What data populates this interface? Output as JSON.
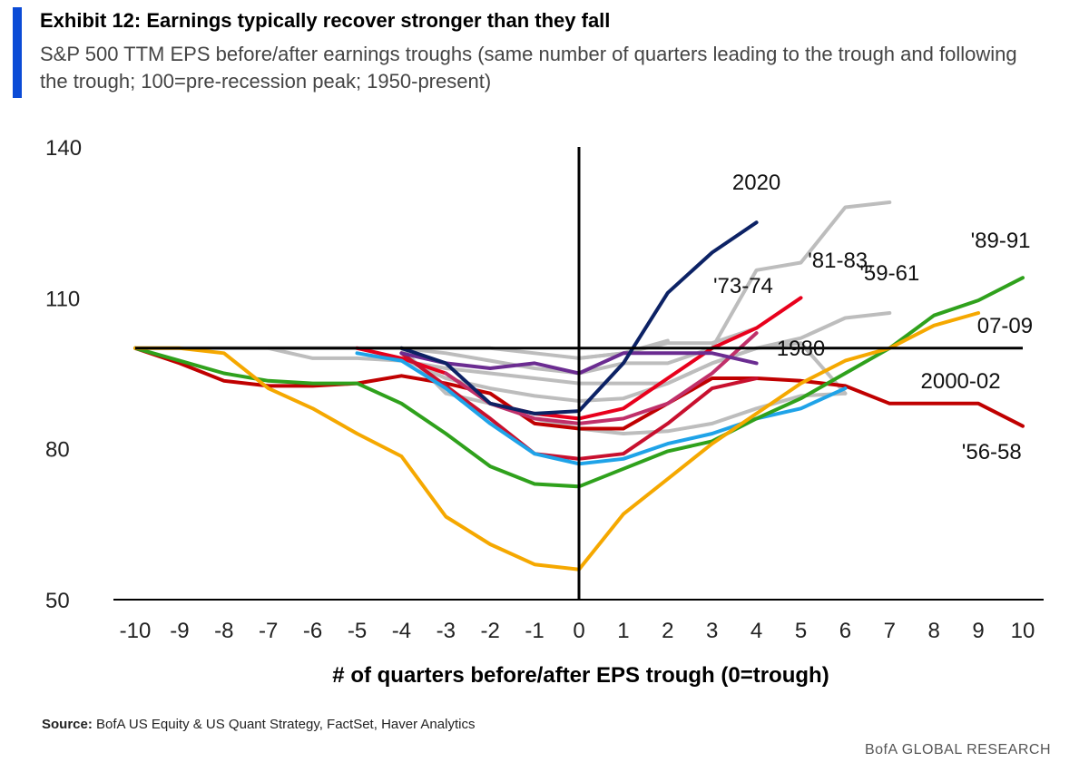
{
  "header": {
    "title": "Exhibit 12: Earnings typically recover stronger than they fall",
    "subtitle": "S&P 500 TTM EPS before/after earnings troughs (same number of quarters leading to the trough and following the trough; 100=pre-recession peak; 1950-present)"
  },
  "footer": {
    "source_label": "Source:",
    "source_text": "BofA US Equity & US Quant Strategy, FactSet, Haver Analytics",
    "brand": "BofA GLOBAL RESEARCH"
  },
  "chart_data": {
    "type": "line",
    "title": "",
    "xlabel": "# of quarters before/after EPS trough (0=trough)",
    "ylabel": "",
    "xlim": [
      -10,
      10
    ],
    "ylim": [
      50,
      140
    ],
    "yticks": [
      50,
      80,
      110,
      140
    ],
    "xticks": [
      -10,
      -9,
      -8,
      -7,
      -6,
      -5,
      -4,
      -3,
      -2,
      -1,
      0,
      1,
      2,
      3,
      4,
      5,
      6,
      7,
      8,
      9,
      10
    ],
    "reference_lines": {
      "horizontal_y": 100,
      "vertical_x": 0
    },
    "grid": false,
    "series": [
      {
        "name": "",
        "color": "#bdbdbd",
        "x": [
          -10,
          -9,
          -8,
          -7,
          -6,
          -5,
          -4,
          -3,
          -2,
          -1,
          0,
          1,
          2,
          3,
          4,
          5,
          6,
          7
        ],
        "y": [
          100,
          100,
          100,
          100,
          100,
          100,
          100,
          99,
          97.5,
          96,
          95,
          97,
          97,
          100,
          115.5,
          117,
          128,
          129
        ]
      },
      {
        "name": "",
        "color": "#bdbdbd",
        "x": [
          -5,
          -4,
          -3,
          -2,
          -1,
          0,
          1,
          2,
          3,
          4,
          5,
          6,
          7
        ],
        "y": [
          100,
          98,
          94,
          92,
          90.5,
          89.5,
          90,
          93,
          97,
          100,
          102,
          106,
          107
        ]
      },
      {
        "name": "",
        "color": "#bdbdbd",
        "x": [
          -7,
          -6,
          -5,
          -4,
          -3,
          -2,
          -1,
          0,
          1,
          2,
          3,
          4,
          5,
          6
        ],
        "y": [
          100,
          98,
          98,
          97.5,
          96,
          95,
          94,
          93,
          93,
          93,
          97,
          100,
          101,
          91
        ]
      },
      {
        "name": "",
        "color": "#bdbdbd",
        "x": [
          -4,
          -3,
          -2,
          -1,
          0,
          1,
          2,
          3,
          4,
          5,
          6
        ],
        "y": [
          100,
          91,
          89,
          86,
          84,
          83,
          83.5,
          85,
          88,
          90.5,
          91
        ]
      },
      {
        "name": "",
        "color": "#bdbdbd",
        "x": [
          -10,
          -9,
          -8,
          -7,
          -6,
          -5,
          -4,
          -3,
          -2,
          -1,
          0,
          1,
          2,
          3,
          4
        ],
        "y": [
          100,
          100,
          100,
          100,
          100,
          100,
          100,
          100,
          100,
          99,
          98,
          99,
          101,
          101,
          104
        ]
      },
      {
        "name": "",
        "color": "#bdbdbd",
        "x": [
          0,
          1,
          2
        ],
        "y": [
          98,
          99,
          101.5
        ]
      },
      {
        "name": "'56-58",
        "color": "#c00000",
        "x": [
          -10,
          -9,
          -8,
          -7,
          -6,
          -5,
          -4,
          -3,
          -2,
          -1,
          0,
          1,
          2,
          3,
          4,
          5,
          6,
          7,
          8,
          9,
          10
        ],
        "y": [
          100,
          97,
          93.5,
          92.5,
          92.5,
          93,
          94.5,
          93,
          91,
          85,
          84,
          84,
          89,
          94,
          94,
          93.5,
          92.5,
          89,
          89,
          89,
          84.5
        ]
      },
      {
        "name": "'73-74",
        "color": "#e8001c",
        "x": [
          -5,
          -4,
          -3,
          -2,
          -1,
          0,
          1,
          2,
          3,
          4,
          5
        ],
        "y": [
          100,
          98,
          95,
          89,
          87,
          86,
          88,
          94,
          100,
          104,
          110
        ]
      },
      {
        "name": "",
        "color": "#c8102e",
        "x": [
          -4,
          -3,
          -2,
          -1,
          0,
          1,
          2,
          3,
          4
        ],
        "y": [
          99,
          92.5,
          86,
          79,
          78,
          79,
          85,
          92,
          94
        ]
      },
      {
        "name": "",
        "color": "#c0306a",
        "x": [
          -3,
          -2,
          -1,
          0,
          1,
          2,
          3,
          4
        ],
        "y": [
          95,
          89,
          86,
          85,
          86,
          89,
          95,
          103
        ]
      },
      {
        "name": "1980",
        "color": "#6b2c91",
        "x": [
          -4,
          -3,
          -2,
          -1,
          0,
          1,
          2,
          3,
          4
        ],
        "y": [
          99,
          97,
          96,
          97,
          95,
          99,
          99,
          99,
          97
        ]
      },
      {
        "name": "2020",
        "color": "#0c2265",
        "x": [
          -4,
          -3,
          -2,
          -1,
          0,
          1,
          2,
          3,
          4
        ],
        "y": [
          100,
          97,
          89,
          87,
          87.5,
          97,
          111,
          119,
          125
        ]
      },
      {
        "name": "",
        "color": "#1fa3e8",
        "x": [
          -5,
          -4,
          -3,
          -2,
          -1,
          0,
          1,
          2,
          3,
          4,
          5,
          6
        ],
        "y": [
          99,
          97.5,
          92,
          85,
          79,
          77,
          78,
          81,
          83,
          86,
          88,
          92
        ]
      },
      {
        "name": "'89-91",
        "color": "#2fa11c",
        "x": [
          -10,
          -9,
          -8,
          -7,
          -6,
          -5,
          -4,
          -3,
          -2,
          -1,
          0,
          1,
          2,
          3,
          4,
          5,
          6,
          7,
          8,
          9,
          10
        ],
        "y": [
          100,
          97.5,
          95,
          93.5,
          93,
          93,
          89,
          83,
          76.5,
          73,
          72.5,
          76,
          79.5,
          81.5,
          86,
          90,
          95,
          100,
          106.5,
          109.5,
          114
        ]
      },
      {
        "name": "2000-02",
        "color": "#f5a800",
        "x": [
          -10,
          -9,
          -8,
          -7,
          -6,
          -5,
          -4,
          -3,
          -2,
          -1,
          0,
          1,
          2,
          3,
          4,
          5,
          6,
          7,
          8,
          9
        ],
        "y": [
          100,
          100,
          99,
          92,
          88,
          83,
          78.5,
          66.5,
          61,
          57,
          56,
          67,
          74,
          81,
          87,
          93,
          97.5,
          100,
          104.5,
          107
        ]
      }
    ],
    "line_labels": [
      {
        "text": "2020",
        "x": 4,
        "y": 131.5
      },
      {
        "text": "'81-83,",
        "x": 5.9,
        "y": 116
      },
      {
        "text": "'59-61",
        "x": 7,
        "y": 113.5
      },
      {
        "text": "'73-74",
        "x": 3.7,
        "y": 111
      },
      {
        "text": "'89-91",
        "x": 9.5,
        "y": 120
      },
      {
        "text": "07-09",
        "x": 9.6,
        "y": 103
      },
      {
        "text": "1980",
        "x": 5,
        "y": 98.5
      },
      {
        "text": "2000-02",
        "x": 8.6,
        "y": 92
      },
      {
        "text": "'56-58",
        "x": 9.3,
        "y": 78
      }
    ]
  }
}
